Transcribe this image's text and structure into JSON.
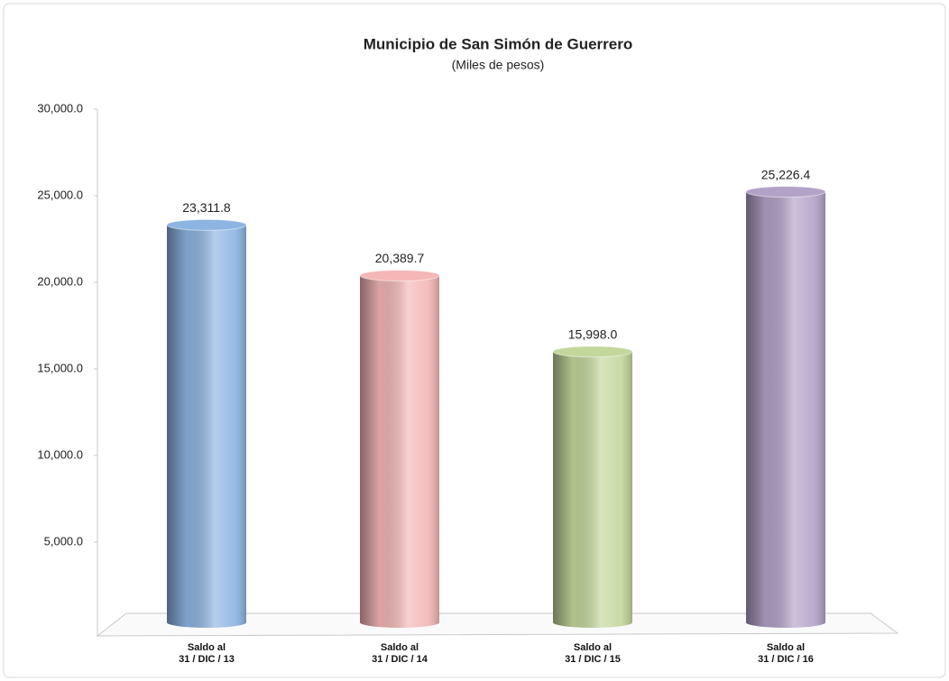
{
  "chart_data": {
    "type": "bar",
    "title": "Municipio de San Simón de Guerrero",
    "subtitle": "(Miles de pesos)",
    "categories": [
      "Saldo al\n31 / DIC / 13",
      "Saldo al\n31 / DIC / 14",
      "Saldo al\n31 / DIC / 15",
      "Saldo al\n31 / DIC / 16"
    ],
    "values": [
      23311.8,
      20389.7,
      15998.0,
      25226.4
    ],
    "value_labels": [
      "23,311.8",
      "20,389.7",
      "15,998.0",
      "25,226.4"
    ],
    "colors": [
      "#8db4e2",
      "#f4b6b6",
      "#c4d79b",
      "#b3a2c7"
    ],
    "ylim": [
      0,
      30000
    ],
    "yticks": [
      {
        "value": 5000,
        "label": "5,000.0"
      },
      {
        "value": 10000,
        "label": "10,000.0"
      },
      {
        "value": 15000,
        "label": "15,000.0"
      },
      {
        "value": 20000,
        "label": "20,000.0"
      },
      {
        "value": 25000,
        "label": "25,000.0"
      },
      {
        "value": 30000,
        "label": "30,000.0"
      }
    ],
    "grid": false
  }
}
